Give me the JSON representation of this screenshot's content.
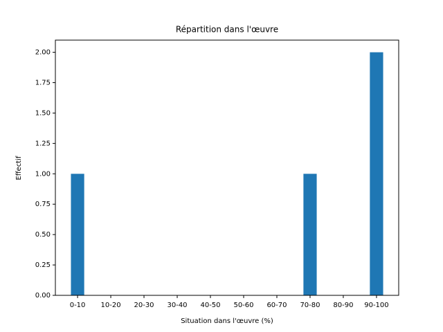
{
  "chart_data": {
    "type": "bar",
    "title": "Répartition dans l'œuvre",
    "x_label": "Situation dans l'œuvre (%)",
    "y_label": "Effectif",
    "categories": [
      "0-10",
      "10-20",
      "20-30",
      "30-40",
      "40-50",
      "50-60",
      "60-70",
      "70-80",
      "80-90",
      "90-100"
    ],
    "values": [
      1,
      0,
      0,
      0,
      0,
      0,
      0,
      1,
      0,
      2
    ],
    "color": "#1f77b4",
    "ylim": [
      0,
      2.1
    ],
    "yticks": [
      {
        "value": 0,
        "label": "0.00"
      },
      {
        "value": 0.25,
        "label": "0.25"
      },
      {
        "value": 0.5,
        "label": "0.50"
      },
      {
        "value": 0.75,
        "label": "0.75"
      },
      {
        "value": 1,
        "label": "1.00"
      },
      {
        "value": 1.25,
        "label": "1.25"
      },
      {
        "value": 1.5,
        "label": "1.50"
      },
      {
        "value": 1.75,
        "label": "1.75"
      },
      {
        "value": 2,
        "label": "2.00"
      }
    ],
    "grid": false
  }
}
